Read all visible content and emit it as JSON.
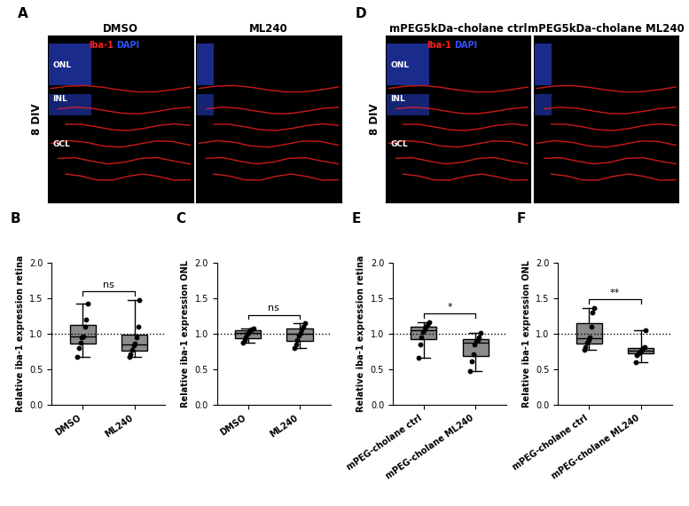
{
  "panels": [
    {
      "panel": "A",
      "side_label": "8 DIV",
      "stain_labels": [
        {
          "text": "Iba-1",
          "color": "#ff2020"
        },
        {
          "text": "DAPI",
          "color": "#3050ff"
        }
      ],
      "layers": [
        "ONL",
        "INL",
        "GCL"
      ],
      "images": [
        "DMSO",
        "ML240"
      ]
    },
    {
      "panel": "D",
      "side_label": "8 DIV",
      "stain_labels": [
        {
          "text": "Iba-1",
          "color": "#ff2020"
        },
        {
          "text": "DAPI",
          "color": "#3050ff"
        }
      ],
      "layers": [
        "ONL",
        "INL",
        "GCL"
      ],
      "images": [
        "mPEG5kDa-cholane ctrl",
        "mPEG5kDa-cholane ML240"
      ]
    }
  ],
  "chart_data": [
    {
      "type": "box",
      "panel": "B",
      "y_label": "Relative iba-1 expression retina",
      "categories": [
        "DMSO",
        "ML240"
      ],
      "values": [
        [
          0.68,
          0.8,
          0.88,
          0.95,
          0.97,
          1.1,
          1.2,
          1.43
        ],
        [
          0.68,
          0.72,
          0.78,
          0.84,
          0.87,
          0.95,
          1.1,
          1.48
        ]
      ],
      "color": "#8c8c8c",
      "ylim": [
        0,
        2
      ],
      "yticks": [
        {
          "value": 0,
          "label": "0.0"
        },
        {
          "value": 0.5,
          "label": "0.5"
        },
        {
          "value": 1,
          "label": "1.0"
        },
        {
          "value": 1.5,
          "label": "1.5"
        },
        {
          "value": 2,
          "label": "2.0"
        }
      ],
      "reference_line": 1,
      "annotation": "ns"
    },
    {
      "type": "box",
      "panel": "C",
      "y_label": "Relative iba-1 expression ONL",
      "categories": [
        "DMSO",
        "ML240"
      ],
      "values": [
        [
          0.88,
          0.92,
          0.95,
          1.0,
          1.03,
          1.05,
          1.07,
          1.08
        ],
        [
          0.8,
          0.85,
          0.92,
          0.98,
          1.02,
          1.07,
          1.1,
          1.15
        ]
      ],
      "color": "#8c8c8c",
      "ylim": [
        0,
        2
      ],
      "yticks": [
        {
          "value": 0,
          "label": "0.0"
        },
        {
          "value": 0.5,
          "label": "0.5"
        },
        {
          "value": 1,
          "label": "1.0"
        },
        {
          "value": 1.5,
          "label": "1.5"
        },
        {
          "value": 2,
          "label": "2.0"
        }
      ],
      "reference_line": 1,
      "annotation": "ns"
    },
    {
      "type": "box",
      "panel": "E",
      "y_label": "Relative iba-1 expression retina",
      "categories": [
        "mPEG-cholane ctrl",
        "mPEG-cholane ML240"
      ],
      "values": [
        [
          0.67,
          0.85,
          0.95,
          1.03,
          1.07,
          1.1,
          1.13,
          1.17
        ],
        [
          0.48,
          0.62,
          0.72,
          0.85,
          0.9,
          0.92,
          0.95,
          1.02
        ]
      ],
      "color": "#8c8c8c",
      "ylim": [
        0,
        2
      ],
      "yticks": [
        {
          "value": 0,
          "label": "0.0"
        },
        {
          "value": 0.5,
          "label": "0.5"
        },
        {
          "value": 1,
          "label": "1.0"
        },
        {
          "value": 1.5,
          "label": "1.5"
        },
        {
          "value": 2,
          "label": "2.0"
        }
      ],
      "reference_line": 1,
      "annotation": "*"
    },
    {
      "type": "box",
      "panel": "F",
      "y_label": "Relative iba-1 expression ONL",
      "categories": [
        "mPEG-cholane ctrl",
        "mPEG-cholane ML240"
      ],
      "values": [
        [
          0.78,
          0.82,
          0.88,
          0.92,
          0.95,
          1.1,
          1.3,
          1.37
        ],
        [
          0.6,
          0.7,
          0.73,
          0.75,
          0.77,
          0.8,
          0.82,
          1.05
        ]
      ],
      "color": "#8c8c8c",
      "ylim": [
        0,
        2
      ],
      "yticks": [
        {
          "value": 0,
          "label": "0.0"
        },
        {
          "value": 0.5,
          "label": "0.5"
        },
        {
          "value": 1,
          "label": "1.0"
        },
        {
          "value": 1.5,
          "label": "1.5"
        },
        {
          "value": 2,
          "label": "2.0"
        }
      ],
      "reference_line": 1,
      "annotation": "**"
    }
  ]
}
